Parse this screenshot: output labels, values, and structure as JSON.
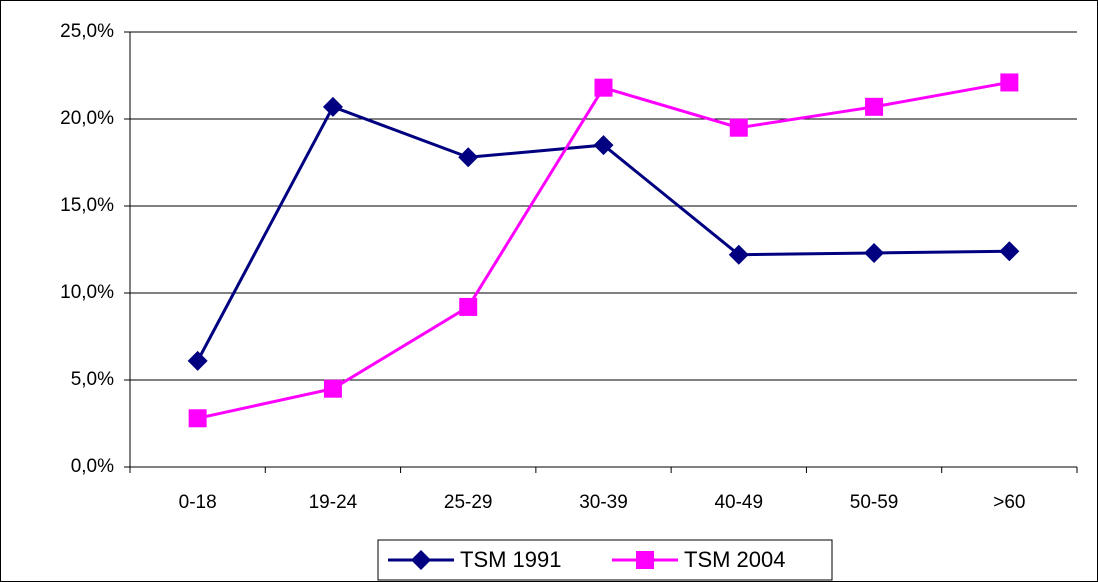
{
  "chart_data": {
    "type": "line",
    "categories": [
      "0-18",
      "19-24",
      "25-29",
      "30-39",
      "40-49",
      "50-59",
      ">60"
    ],
    "series": [
      {
        "name": "TSM 1991",
        "color": "#000080",
        "marker": "diamond",
        "values": [
          6.1,
          20.7,
          17.8,
          18.5,
          12.2,
          12.3,
          12.4
        ]
      },
      {
        "name": "TSM 2004",
        "color": "#ff00ff",
        "marker": "square",
        "values": [
          2.8,
          4.5,
          9.2,
          21.8,
          19.5,
          20.7,
          22.1
        ]
      }
    ],
    "ylim": [
      0,
      25
    ],
    "yticks": [
      {
        "value": 0,
        "label": "0,0%"
      },
      {
        "value": 5,
        "label": "5,0%"
      },
      {
        "value": 10,
        "label": "10,0%"
      },
      {
        "value": 15,
        "label": "15,0%"
      },
      {
        "value": 20,
        "label": "20,0%"
      },
      {
        "value": 25,
        "label": "25,0%"
      }
    ],
    "grid": true,
    "legend": "bottom"
  }
}
